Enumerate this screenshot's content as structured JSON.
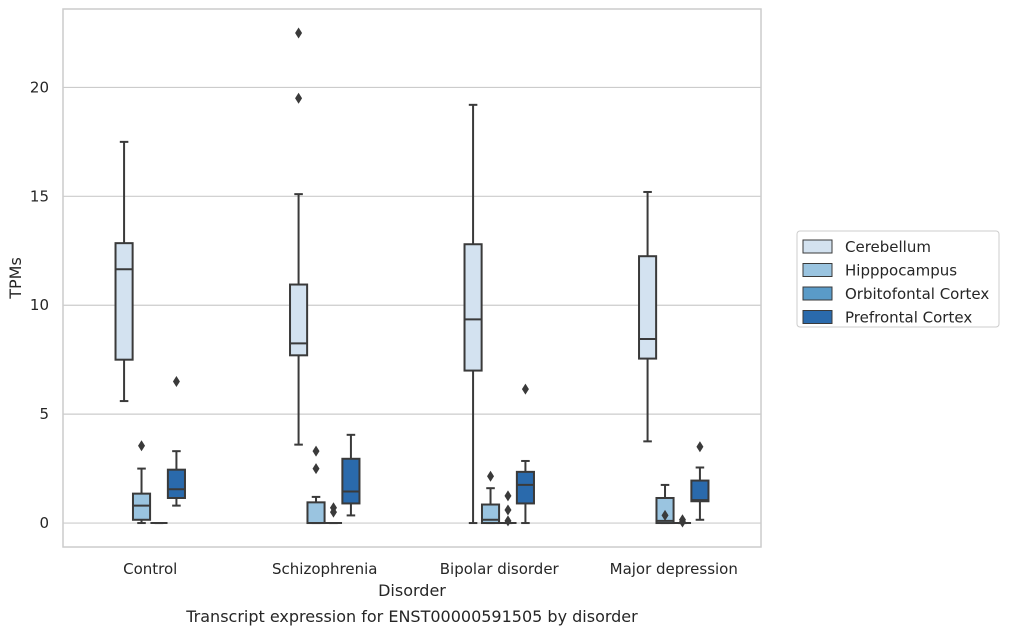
{
  "caption": "Transcript expression for ENST00000591505 by disorder",
  "chart_data": {
    "type": "boxplot",
    "title": "",
    "xlabel": "Disorder",
    "ylabel": "TPMs",
    "ylim": [
      -1.1,
      23.6
    ],
    "yticks": [
      0,
      5,
      10,
      15,
      20
    ],
    "grid": "horizontal",
    "legend_position": "right",
    "categories": [
      "Control",
      "Schizophrenia",
      "Bipolar disorder",
      "Major depression"
    ],
    "series": [
      {
        "name": "Cerebellum",
        "color": "#d3e2f0",
        "boxes": [
          {
            "whislo": 5.6,
            "q1": 7.5,
            "med": 11.65,
            "q3": 12.85,
            "whishi": 17.5,
            "fliers": []
          },
          {
            "whislo": 3.6,
            "q1": 7.7,
            "med": 8.25,
            "q3": 10.95,
            "whishi": 15.1,
            "fliers": [
              19.5,
              22.5
            ]
          },
          {
            "whislo": 0.0,
            "q1": 7.0,
            "med": 9.35,
            "q3": 12.8,
            "whishi": 19.2,
            "fliers": []
          },
          {
            "whislo": 3.75,
            "q1": 7.55,
            "med": 8.45,
            "q3": 12.25,
            "whishi": 15.2,
            "fliers": []
          }
        ]
      },
      {
        "name": "Hipppocampus",
        "color": "#9ac4e0",
        "boxes": [
          {
            "whislo": 0.0,
            "q1": 0.15,
            "med": 0.8,
            "q3": 1.35,
            "whishi": 2.5,
            "fliers": [
              3.55
            ]
          },
          {
            "whislo": 0.0,
            "q1": 0.0,
            "med": 0.0,
            "q3": 0.95,
            "whishi": 1.2,
            "fliers": [
              3.3,
              2.5
            ]
          },
          {
            "whislo": 0.0,
            "q1": 0.0,
            "med": 0.15,
            "q3": 0.85,
            "whishi": 1.6,
            "fliers": [
              2.15
            ]
          },
          {
            "whislo": 0.0,
            "q1": 0.0,
            "med": 0.1,
            "q3": 1.15,
            "whishi": 1.75,
            "fliers": [
              0.35
            ]
          }
        ]
      },
      {
        "name": "Orbitofontal Cortex",
        "color": "#5a9bc8",
        "boxes": [
          {
            "whislo": 0.0,
            "q1": 0.0,
            "med": 0.0,
            "q3": 0.0,
            "whishi": 0.0,
            "fliers": []
          },
          {
            "whislo": 0.0,
            "q1": 0.0,
            "med": 0.0,
            "q3": 0.0,
            "whishi": 0.0,
            "fliers": [
              0.7,
              0.5
            ]
          },
          {
            "whislo": 0.0,
            "q1": 0.0,
            "med": 0.0,
            "q3": 0.0,
            "whishi": 0.0,
            "fliers": [
              1.25,
              0.6,
              0.1
            ]
          },
          {
            "whislo": 0.0,
            "q1": 0.0,
            "med": 0.0,
            "q3": 0.0,
            "whishi": 0.0,
            "fliers": [
              0.15,
              0.05
            ]
          }
        ]
      },
      {
        "name": "Prefrontal Cortex",
        "color": "#2a6aac",
        "boxes": [
          {
            "whislo": 0.8,
            "q1": 1.15,
            "med": 1.55,
            "q3": 2.45,
            "whishi": 3.3,
            "fliers": [
              6.5
            ]
          },
          {
            "whislo": 0.35,
            "q1": 0.9,
            "med": 1.45,
            "q3": 2.95,
            "whishi": 4.05,
            "fliers": []
          },
          {
            "whislo": 0.0,
            "q1": 0.9,
            "med": 1.75,
            "q3": 2.35,
            "whishi": 2.85,
            "fliers": [
              6.15
            ]
          },
          {
            "whislo": 0.15,
            "q1": 1.0,
            "med": 1.05,
            "q3": 1.95,
            "whishi": 2.55,
            "fliers": [
              3.5
            ]
          }
        ]
      }
    ]
  }
}
